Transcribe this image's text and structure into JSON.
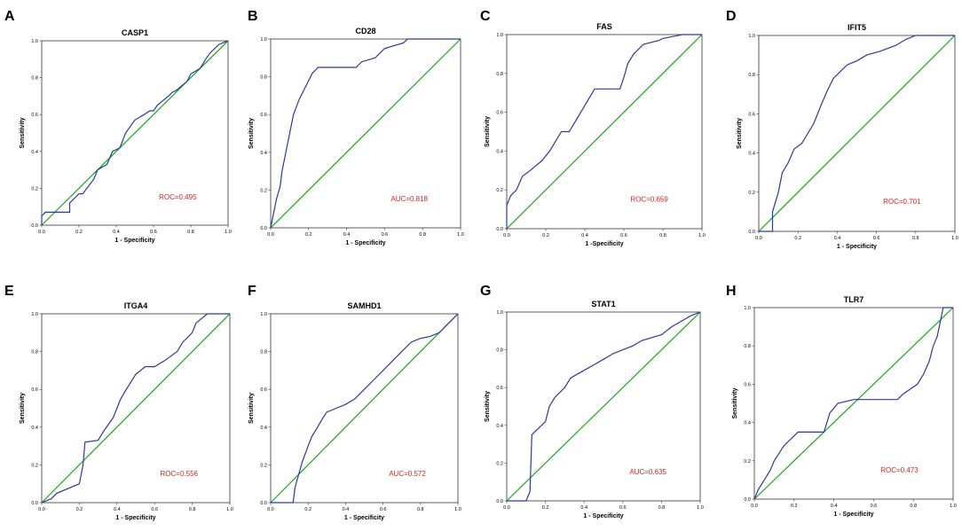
{
  "chart_data": [
    {
      "type": "line",
      "letter": "A",
      "title": "CASP1",
      "xlabel": "1 - Specificity",
      "ylabel": "Sensitivity",
      "xlim": [
        0,
        1
      ],
      "ylim": [
        0,
        1
      ],
      "annotation": "ROC=0.495",
      "series": [
        {
          "name": "Reference",
          "x": [
            0,
            1
          ],
          "y": [
            0,
            1
          ]
        },
        {
          "name": "ROC",
          "x": [
            0,
            0,
            0.02,
            0.15,
            0.15,
            0.2,
            0.22,
            0.28,
            0.3,
            0.35,
            0.38,
            0.42,
            0.45,
            0.5,
            0.55,
            0.58,
            0.6,
            0.62,
            0.68,
            0.7,
            0.72,
            0.78,
            0.8,
            0.85,
            0.88,
            0.9,
            0.95,
            1
          ],
          "y": [
            0,
            0.05,
            0.07,
            0.07,
            0.12,
            0.17,
            0.17,
            0.25,
            0.3,
            0.33,
            0.4,
            0.42,
            0.5,
            0.57,
            0.6,
            0.62,
            0.62,
            0.65,
            0.7,
            0.72,
            0.73,
            0.78,
            0.82,
            0.85,
            0.9,
            0.93,
            0.98,
            1
          ]
        }
      ]
    },
    {
      "type": "line",
      "letter": "B",
      "title": "CD28",
      "xlabel": "1 - Specificity",
      "ylabel": "Sensitivity",
      "xlim": [
        0,
        1
      ],
      "ylim": [
        0,
        1
      ],
      "annotation": "AUC=0.818",
      "series": [
        {
          "name": "Reference",
          "x": [
            0,
            1
          ],
          "y": [
            0,
            1
          ]
        },
        {
          "name": "ROC",
          "x": [
            0,
            0.01,
            0.02,
            0.03,
            0.05,
            0.06,
            0.08,
            0.1,
            0.12,
            0.15,
            0.17,
            0.2,
            0.22,
            0.25,
            0.3,
            0.45,
            0.48,
            0.55,
            0.6,
            0.7,
            0.72,
            1
          ],
          "y": [
            0,
            0.05,
            0.1,
            0.15,
            0.22,
            0.3,
            0.4,
            0.5,
            0.6,
            0.68,
            0.72,
            0.78,
            0.82,
            0.85,
            0.85,
            0.85,
            0.88,
            0.9,
            0.95,
            0.98,
            1,
            1
          ]
        }
      ]
    },
    {
      "type": "line",
      "letter": "C",
      "title": "FAS",
      "xlabel": "1 -Specificity",
      "ylabel": "Sensitivity",
      "xlim": [
        0,
        1
      ],
      "ylim": [
        0,
        1
      ],
      "annotation": "ROC=0.659",
      "series": [
        {
          "name": "Reference",
          "x": [
            0,
            1
          ],
          "y": [
            0,
            1
          ]
        },
        {
          "name": "ROC",
          "x": [
            0,
            0,
            0.02,
            0.05,
            0.08,
            0.12,
            0.18,
            0.22,
            0.28,
            0.32,
            0.35,
            0.45,
            0.5,
            0.58,
            0.6,
            0.62,
            0.65,
            0.7,
            0.78,
            0.8,
            0.9,
            1
          ],
          "y": [
            0,
            0.12,
            0.17,
            0.2,
            0.27,
            0.3,
            0.35,
            0.4,
            0.5,
            0.5,
            0.55,
            0.72,
            0.72,
            0.72,
            0.78,
            0.85,
            0.9,
            0.95,
            0.97,
            0.98,
            1,
            1
          ]
        }
      ]
    },
    {
      "type": "line",
      "letter": "D",
      "title": "IFIT5",
      "xlabel": "1 - Specificity",
      "ylabel": "Sensitivity",
      "xlim": [
        0,
        1
      ],
      "ylim": [
        0,
        1
      ],
      "annotation": "ROC=0.701",
      "series": [
        {
          "name": "Reference",
          "x": [
            0,
            1
          ],
          "y": [
            0,
            1
          ]
        },
        {
          "name": "ROC",
          "x": [
            0,
            0.07,
            0.07,
            0.1,
            0.12,
            0.15,
            0.18,
            0.22,
            0.25,
            0.28,
            0.3,
            0.32,
            0.35,
            0.38,
            0.42,
            0.45,
            0.5,
            0.55,
            0.62,
            0.7,
            0.75,
            0.8,
            1
          ],
          "y": [
            0,
            0,
            0.1,
            0.2,
            0.3,
            0.35,
            0.42,
            0.45,
            0.5,
            0.55,
            0.6,
            0.65,
            0.72,
            0.78,
            0.82,
            0.85,
            0.87,
            0.9,
            0.92,
            0.95,
            0.98,
            1,
            1
          ]
        }
      ]
    },
    {
      "type": "line",
      "letter": "E",
      "title": "ITGA4",
      "xlabel": "1 - Specificity",
      "ylabel": "Sensitivity",
      "xlim": [
        0,
        1
      ],
      "ylim": [
        0,
        1
      ],
      "annotation": "ROC=0.556",
      "series": [
        {
          "name": "Reference",
          "x": [
            0,
            1
          ],
          "y": [
            0,
            1
          ]
        },
        {
          "name": "ROC",
          "x": [
            0,
            0.05,
            0.08,
            0.2,
            0.22,
            0.23,
            0.3,
            0.33,
            0.38,
            0.4,
            0.42,
            0.45,
            0.5,
            0.55,
            0.6,
            0.65,
            0.72,
            0.75,
            0.8,
            0.82,
            0.88,
            1
          ],
          "y": [
            0,
            0.02,
            0.05,
            0.1,
            0.2,
            0.32,
            0.33,
            0.38,
            0.45,
            0.5,
            0.55,
            0.6,
            0.68,
            0.72,
            0.72,
            0.75,
            0.8,
            0.85,
            0.9,
            0.95,
            1,
            1
          ]
        }
      ]
    },
    {
      "type": "line",
      "letter": "F",
      "title": "SAMHD1",
      "xlabel": "1 - Specificity",
      "ylabel": "Sensitivity",
      "xlim": [
        0,
        1
      ],
      "ylim": [
        0,
        1
      ],
      "annotation": "AUC=0.572",
      "series": [
        {
          "name": "Reference",
          "x": [
            0,
            1
          ],
          "y": [
            0,
            1
          ]
        },
        {
          "name": "ROC",
          "x": [
            0,
            0.12,
            0.13,
            0.15,
            0.17,
            0.2,
            0.22,
            0.25,
            0.28,
            0.3,
            0.35,
            0.4,
            0.45,
            0.5,
            0.55,
            0.6,
            0.65,
            0.7,
            0.75,
            0.8,
            0.85,
            0.9,
            0.95,
            1
          ],
          "y": [
            0,
            0,
            0.08,
            0.15,
            0.22,
            0.3,
            0.35,
            0.4,
            0.45,
            0.48,
            0.5,
            0.52,
            0.55,
            0.6,
            0.65,
            0.7,
            0.75,
            0.8,
            0.85,
            0.87,
            0.88,
            0.9,
            0.95,
            1
          ]
        }
      ]
    },
    {
      "type": "line",
      "letter": "G",
      "title": "STAT1",
      "xlabel": "1 - Specificity",
      "ylabel": "Sensitivity",
      "xlim": [
        0,
        1
      ],
      "ylim": [
        0,
        1
      ],
      "annotation": "AUC=0.635",
      "series": [
        {
          "name": "Reference",
          "x": [
            0,
            1
          ],
          "y": [
            0,
            1
          ]
        },
        {
          "name": "ROC",
          "x": [
            0,
            0.1,
            0.12,
            0.13,
            0.2,
            0.22,
            0.25,
            0.3,
            0.33,
            0.38,
            0.45,
            0.5,
            0.55,
            0.6,
            0.65,
            0.7,
            0.8,
            0.85,
            0.9,
            0.95,
            1
          ],
          "y": [
            0,
            0,
            0.05,
            0.35,
            0.42,
            0.5,
            0.55,
            0.6,
            0.65,
            0.68,
            0.72,
            0.75,
            0.78,
            0.8,
            0.82,
            0.85,
            0.88,
            0.92,
            0.95,
            0.98,
            1
          ]
        }
      ]
    },
    {
      "type": "line",
      "letter": "H",
      "title": "TLR7",
      "xlabel": "1 - Specificity",
      "ylabel": "Sensitivity",
      "xlim": [
        0,
        1
      ],
      "ylim": [
        0,
        1
      ],
      "annotation": "ROC=0.473",
      "series": [
        {
          "name": "Reference",
          "x": [
            0,
            1
          ],
          "y": [
            0,
            1
          ]
        },
        {
          "name": "ROC",
          "x": [
            0,
            0.02,
            0.05,
            0.08,
            0.1,
            0.15,
            0.22,
            0.35,
            0.38,
            0.42,
            0.5,
            0.55,
            0.65,
            0.72,
            0.75,
            0.82,
            0.85,
            0.88,
            0.9,
            0.92,
            0.94,
            0.95,
            1
          ],
          "y": [
            0,
            0.05,
            0.1,
            0.15,
            0.2,
            0.28,
            0.35,
            0.35,
            0.45,
            0.5,
            0.52,
            0.52,
            0.52,
            0.52,
            0.55,
            0.6,
            0.65,
            0.72,
            0.8,
            0.85,
            0.95,
            1,
            1
          ]
        }
      ]
    }
  ]
}
